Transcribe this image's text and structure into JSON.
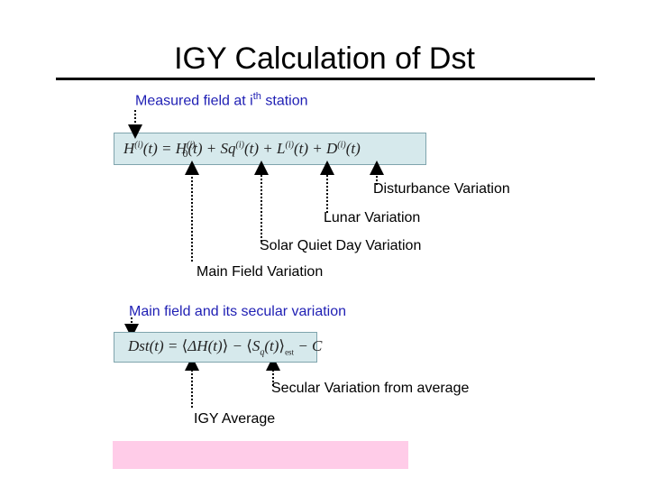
{
  "title": "IGY Calculation of Dst",
  "measured_label": {
    "prefix": "Measured field at i",
    "sup": "th",
    "suffix": " station"
  },
  "equation1": {
    "H": "H",
    "i_sup": "(i)",
    "t1": "(t) = ",
    "H0": "H",
    "zero": "0",
    "t2": "(t) + ",
    "Sq": "Sq",
    "t3": "(t) + ",
    "L": "L",
    "t4": "(t) + ",
    "D": "D",
    "t5": "(t)"
  },
  "annotations": {
    "disturbance": "Disturbance Variation",
    "lunar": "Lunar Variation",
    "solar": "Solar Quiet Day Variation",
    "main_field": "Main Field Variation"
  },
  "main_field_secular": "Main field and its secular variation",
  "equation2": {
    "dst": "Dst",
    "t1": "(t) = ",
    "lang1": "⟨",
    "dh": "ΔH",
    "t2": "(t)",
    "rang1": "⟩",
    "minus": " − ",
    "lang2": "⟨",
    "sq": "S",
    "q": "q",
    "t3": "(t)",
    "rang2": "⟩",
    "est": "est",
    "c": " − C"
  },
  "secular_label": "Secular Variation from average",
  "igy_label": "IGY Average",
  "colors": {
    "label_blue": "#1f1fb4",
    "equation_bg": "#d6e9ec",
    "pink_box": "#ffcce8"
  }
}
